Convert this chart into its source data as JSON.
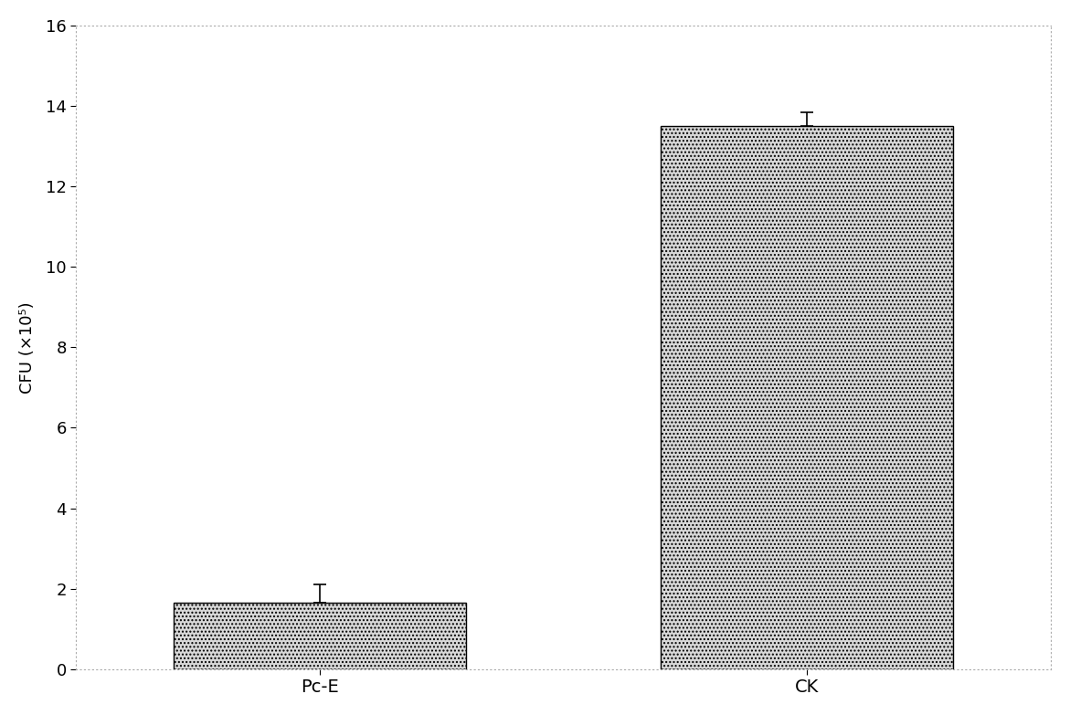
{
  "categories": [
    "Pc-E",
    "CK"
  ],
  "values": [
    1.65,
    13.5
  ],
  "errors_upper": [
    0.45,
    0.35
  ],
  "ylim": [
    0,
    16
  ],
  "yticks": [
    0,
    2,
    4,
    6,
    8,
    10,
    12,
    14,
    16
  ],
  "ylabel": "CFU (×10⁵)",
  "bar_color": "#d8d8d8",
  "bar_edgecolor": "#000000",
  "bar_width": 0.3,
  "bar_positions": [
    0.25,
    0.75
  ],
  "xlim": [
    0,
    1
  ],
  "background_color": "#ffffff",
  "ylabel_fontsize": 13,
  "xlabel_fontsize": 14,
  "tick_fontsize": 13,
  "spine_dotted_color": "#aaaaaa",
  "hatch": "...."
}
